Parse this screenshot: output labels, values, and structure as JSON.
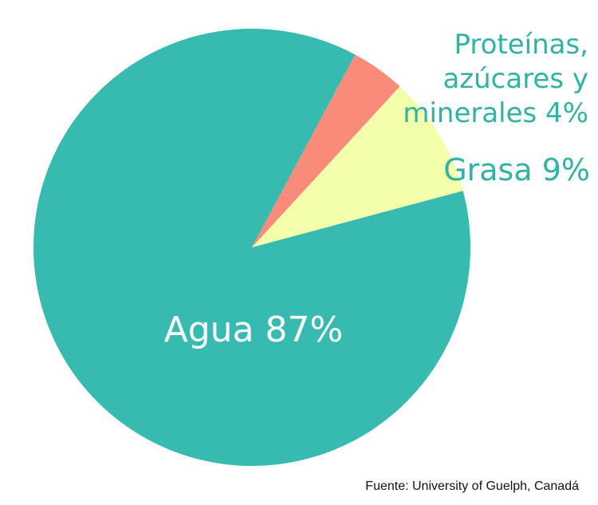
{
  "chart_data": {
    "type": "pie",
    "title": "",
    "slices": [
      {
        "label": "Agua",
        "value": 87,
        "display": "Agua 87%",
        "color": "#37bbb1"
      },
      {
        "label": "Grasa",
        "value": 9,
        "display": "Grasa 9%",
        "color": "#f3ffaa"
      },
      {
        "label": "Proteínas, azúcares y minerales",
        "value": 4,
        "display_lines": [
          "Proteínas,",
          "azúcares y",
          "minerales 4%"
        ],
        "color": "#fa8a7a"
      }
    ],
    "label_colors": {
      "inside": "#ffffff",
      "outside": "#2fb3a3"
    }
  },
  "source": "Fuente: University of Guelph, Canadá"
}
